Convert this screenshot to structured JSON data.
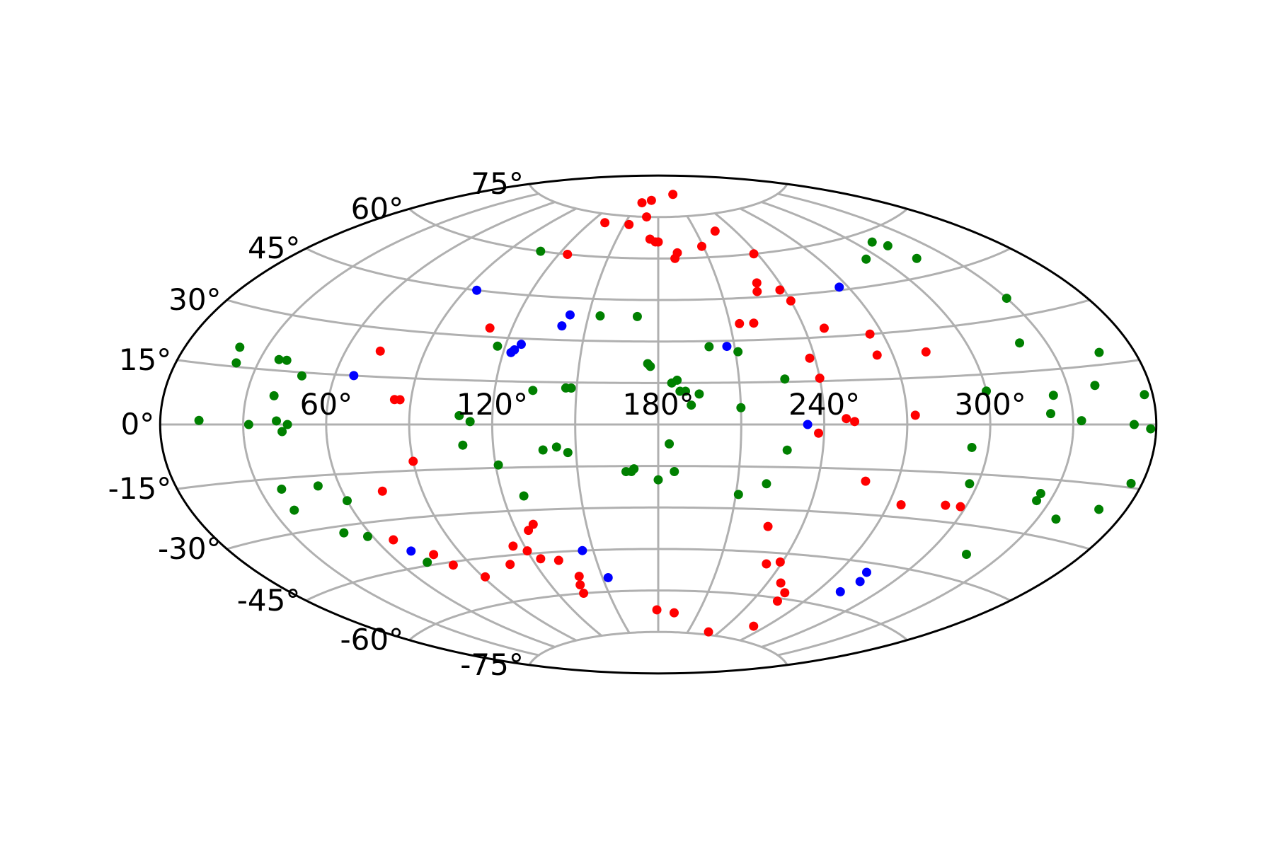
{
  "chart_data": {
    "type": "scatter",
    "projection": "aitoff",
    "title": "",
    "xlabel": "",
    "ylabel": "",
    "grid": true,
    "legend": "none",
    "x_ticks": [
      {
        "value": 60,
        "label": "60°"
      },
      {
        "value": 120,
        "label": "120°"
      },
      {
        "value": 180,
        "label": "180°"
      },
      {
        "value": 240,
        "label": "240°"
      },
      {
        "value": 300,
        "label": "300°"
      }
    ],
    "y_ticks": [
      {
        "value": 75,
        "label": "75°"
      },
      {
        "value": 60,
        "label": "60°"
      },
      {
        "value": 45,
        "label": "45°"
      },
      {
        "value": 30,
        "label": "30°"
      },
      {
        "value": 15,
        "label": "15°"
      },
      {
        "value": 0,
        "label": "0°"
      },
      {
        "value": -15,
        "label": "-15°"
      },
      {
        "value": -30,
        "label": "-30°"
      },
      {
        "value": -45,
        "label": "-45°"
      },
      {
        "value": -60,
        "label": "-60°"
      },
      {
        "value": -75,
        "label": "-75°"
      }
    ],
    "xlim": [
      0,
      360
    ],
    "ylim": [
      -90,
      90
    ],
    "series": [
      {
        "color": "#ff0000",
        "points": [
          [
            156,
            80
          ],
          [
            169,
            81
          ],
          [
            210,
            83
          ],
          [
            154,
            72
          ],
          [
            132,
            72
          ],
          [
            168,
            75
          ],
          [
            125,
            60
          ],
          [
            174,
            67
          ],
          [
            178,
            66
          ],
          [
            180,
            66
          ],
          [
            192,
            62
          ],
          [
            190,
            60
          ],
          [
            209,
            64
          ],
          [
            225,
            69
          ],
          [
            238,
            60
          ],
          [
            229,
            50
          ],
          [
            238,
            47
          ],
          [
            227,
            47
          ],
          [
            240,
            43
          ],
          [
            111,
            33
          ],
          [
            214,
            36
          ],
          [
            220,
            36
          ],
          [
            248,
            33
          ],
          [
            265,
            30
          ],
          [
            264,
            23
          ],
          [
            238,
            23
          ],
          [
            283,
            23
          ],
          [
            73,
            23
          ],
          [
            240,
            16
          ],
          [
            86,
            8
          ],
          [
            84,
            8
          ],
          [
            248,
            2
          ],
          [
            251,
            1
          ],
          [
            273,
            3
          ],
          [
            238,
            -3
          ],
          [
            90,
            -12
          ],
          [
            258,
            -19
          ],
          [
            75,
            -21
          ],
          [
            275,
            -26
          ],
          [
            292,
            -25
          ],
          [
            298,
            -25
          ],
          [
            226,
            -36
          ],
          [
            67,
            -36
          ],
          [
            125,
            -37
          ],
          [
            128,
            -35
          ],
          [
            78,
            -42
          ],
          [
            115,
            -42
          ],
          [
            120,
            -44
          ],
          [
            82,
            -46
          ],
          [
            108,
            -48
          ],
          [
            124,
            -47
          ],
          [
            132,
            -48
          ],
          [
            233,
            -49
          ],
          [
            239,
            -48
          ],
          [
            91,
            -51
          ],
          [
            136,
            -57
          ],
          [
            138,
            -54
          ],
          [
            247,
            -55
          ],
          [
            254,
            -58
          ],
          [
            255,
            -61
          ],
          [
            135,
            -60
          ],
          [
            179,
            -67
          ],
          [
            192,
            -68
          ],
          [
            261,
            -70
          ],
          [
            230,
            -74
          ]
        ]
      },
      {
        "color": "#008000",
        "points": [
          [
            108,
            60
          ],
          [
            309,
            57
          ],
          [
            313,
            55
          ],
          [
            316,
            50
          ],
          [
            293,
            53
          ],
          [
            155,
            39
          ],
          [
            171,
            39
          ],
          [
            330,
            35
          ],
          [
            117,
            27
          ],
          [
            200,
            28
          ],
          [
            211,
            26
          ],
          [
            176,
            22
          ],
          [
            177,
            21
          ],
          [
            320,
            23
          ],
          [
            20,
            20
          ],
          [
            37,
            18
          ],
          [
            40,
            18
          ],
          [
            22,
            16
          ],
          [
            48,
            14
          ],
          [
            146,
            13
          ],
          [
            148,
            13
          ],
          [
            134,
            12
          ],
          [
            185,
            15
          ],
          [
            187,
            16
          ],
          [
            188,
            12
          ],
          [
            190,
            12
          ],
          [
            195,
            11
          ],
          [
            227,
            16
          ],
          [
            347,
            18
          ],
          [
            340,
            10
          ],
          [
            300,
            10
          ],
          [
            324,
            8
          ],
          [
            40,
            8
          ],
          [
            108,
            3
          ],
          [
            192,
            7
          ],
          [
            210,
            6
          ],
          [
            322,
            3
          ],
          [
            357,
            7
          ],
          [
            14,
            1
          ],
          [
            32,
            0
          ],
          [
            42,
            1
          ],
          [
            46,
            0
          ],
          [
            44,
            -2
          ],
          [
            112,
            1
          ],
          [
            333,
            1
          ],
          [
            352,
            0
          ],
          [
            358,
            -1
          ],
          [
            109,
            -7
          ],
          [
            294,
            -7
          ],
          [
            184,
            -7
          ],
          [
            138,
            -9
          ],
          [
            143,
            -8
          ],
          [
            147,
            -10
          ],
          [
            227,
            -9
          ],
          [
            121,
            -14
          ],
          [
            171,
            -16
          ],
          [
            170,
            -17
          ],
          [
            168,
            -17
          ],
          [
            186,
            -17
          ],
          [
            180,
            -20
          ],
          [
            297,
            -18
          ],
          [
            38,
            -18
          ],
          [
            52,
            -18
          ],
          [
            325,
            -19
          ],
          [
            325,
            -21
          ],
          [
            356,
            -14
          ],
          [
            350,
            -21
          ],
          [
            38,
            -24
          ],
          [
            60,
            -23
          ],
          [
            128,
            -25
          ],
          [
            221,
            -21
          ],
          [
            211,
            -25
          ],
          [
            337,
            -25
          ],
          [
            50,
            -32
          ],
          [
            58,
            -34
          ],
          [
            316,
            -38
          ],
          [
            72,
            -44
          ]
        ]
      },
      {
        "color": "#0000ff",
        "points": [
          [
            95,
            45
          ],
          [
            142,
            39
          ],
          [
            140,
            35
          ],
          [
            126,
            28
          ],
          [
            124,
            26
          ],
          [
            123,
            25
          ],
          [
            207,
            28
          ],
          [
            266,
            46
          ],
          [
            67,
            15
          ],
          [
            234,
            0
          ],
          [
            70,
            -40
          ],
          [
            145,
            -45
          ],
          [
            153,
            -55
          ],
          [
            283,
            -48
          ],
          [
            285,
            -51
          ],
          [
            282,
            -55
          ]
        ]
      }
    ]
  }
}
